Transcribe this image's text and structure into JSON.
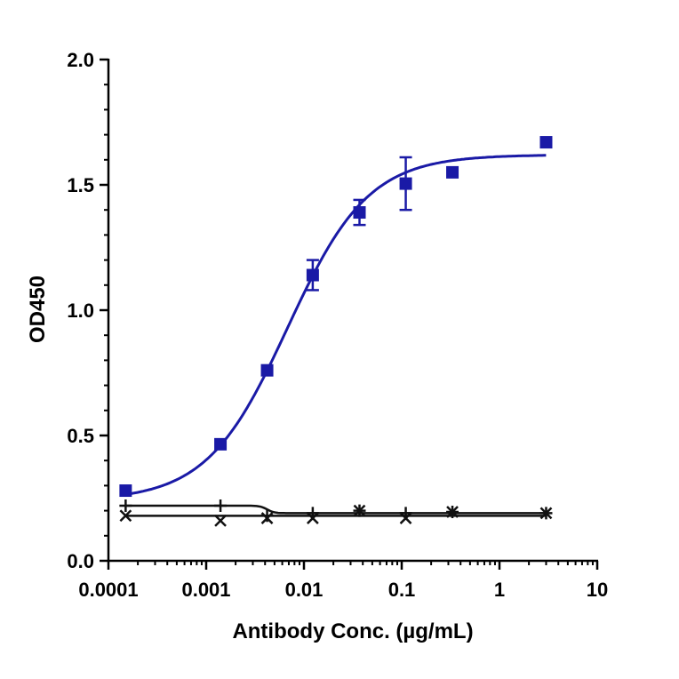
{
  "chart_data": {
    "type": "scatter",
    "title": "",
    "xlabel": "Antibody Conc. (µg/mL)",
    "ylabel": "OD450",
    "xscale": "log",
    "xlim": [
      0.0001,
      10
    ],
    "ylim": [
      0,
      2.0
    ],
    "xticks": [
      0.0001,
      0.001,
      0.01,
      0.1,
      1,
      10
    ],
    "xtick_labels": [
      "0.0001",
      "0.001",
      "0.01",
      "0.1",
      "1",
      "10"
    ],
    "yticks": [
      0,
      0.5,
      1.0,
      1.5,
      2.0
    ],
    "ytick_labels": [
      "0.0",
      "0.5",
      "1.0",
      "1.5",
      "2.0"
    ],
    "grid": false,
    "series": [
      {
        "marker": "square",
        "color": "#1a1aa6",
        "x": [
          0.00015,
          0.0014,
          0.0042,
          0.0123,
          0.037,
          0.11,
          0.33,
          3.0
        ],
        "y": [
          0.28,
          0.465,
          0.76,
          1.14,
          1.39,
          1.505,
          1.55,
          1.67
        ],
        "error": [
          0,
          0,
          0,
          0.06,
          0.05,
          0.105,
          0,
          0
        ],
        "fit": "sigmoid"
      },
      {
        "marker": "cross",
        "color": "#111111",
        "x": [
          0.00015,
          0.0014,
          0.0042,
          0.0123,
          0.037,
          0.11,
          0.33,
          3.0
        ],
        "y": [
          0.18,
          0.16,
          0.17,
          0.17,
          0.2,
          0.17,
          0.195,
          0.19
        ],
        "fit": "flat"
      },
      {
        "marker": "plus",
        "color": "#111111",
        "x": [
          0.00015,
          0.0014,
          0.0042,
          0.0123,
          0.037,
          0.11,
          0.33,
          3.0
        ],
        "y": [
          0.22,
          0.22,
          0.18,
          0.19,
          0.2,
          0.19,
          0.195,
          0.19
        ],
        "fit": "step"
      }
    ]
  }
}
